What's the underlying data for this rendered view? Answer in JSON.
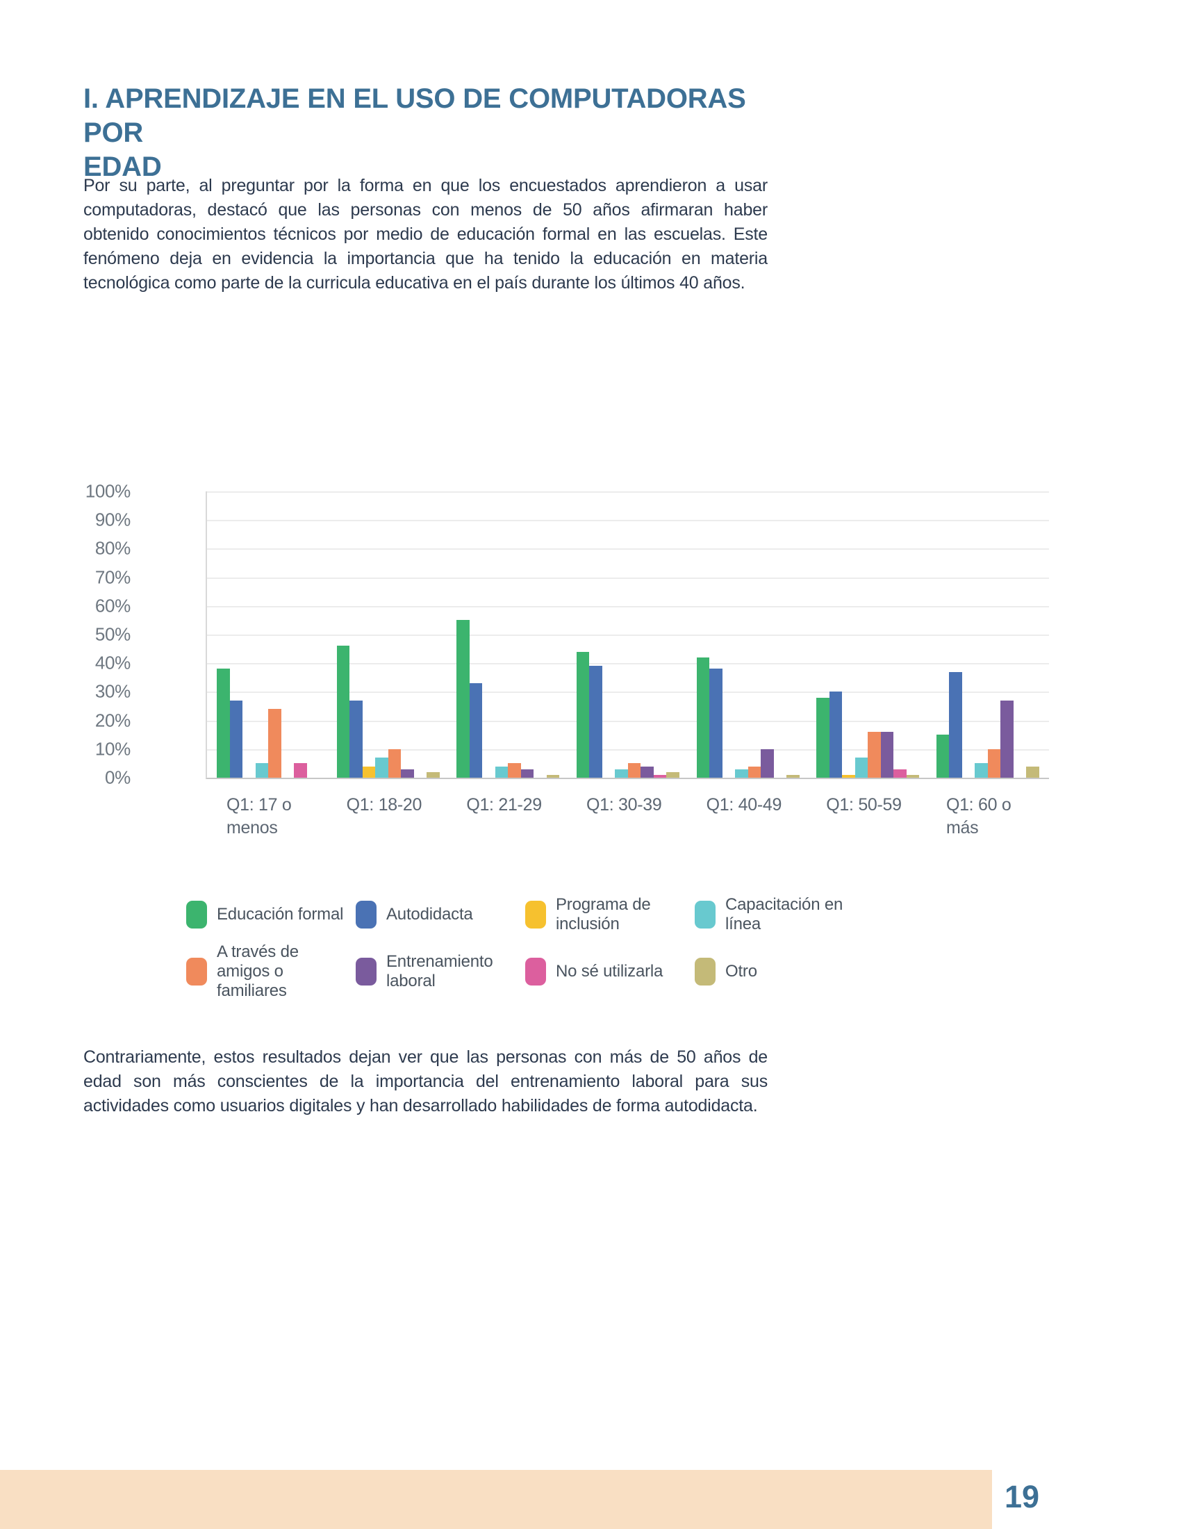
{
  "page": {
    "title": "I. APRENDIZAJE EN EL USO DE COMPUTADORAS POR\nEDAD",
    "paragraph_1": "Por su parte, al preguntar por la forma en que los encuestados aprendieron a usar computadoras, destacó que las personas con menos de 50 años afirmaran haber obtenido conocimientos técnicos por medio de educación formal en las escuelas. Este fenómeno deja en evidencia la importancia que ha tenido la educación en materia tecnológica como parte de la curricula educativa en el país durante los últimos 40 años.",
    "paragraph_2": "Contrariamente, estos resultados dejan ver que las personas con más de 50 años de edad son más conscientes de la importancia del entrenamiento laboral para sus actividades como usuarios digitales y han desarrollado habilidades de forma autodidacta.",
    "page_number": "19"
  },
  "colors": {
    "title_blue": "#3d7095",
    "body_text": "#2d3a4e",
    "axis_label_gray": "#6e7780",
    "gridline_gray": "#ececec",
    "footer_peach": "#f9dfc3"
  },
  "chart_data": {
    "type": "bar",
    "title": "",
    "xlabel": "",
    "ylabel": "",
    "ylim": [
      0,
      100
    ],
    "grid": true,
    "legend_position": "bottom",
    "y_ticks": [
      "100%",
      "90%",
      "80%",
      "70%",
      "60%",
      "50%",
      "40%",
      "30%",
      "20%",
      "10%",
      "0%"
    ],
    "categories": [
      "Q1: 17 o menos",
      "Q1: 18-20",
      "Q1: 21-29",
      "Q1: 30-39",
      "Q1: 40-49",
      "Q1: 50-59",
      "Q1: 60 o más"
    ],
    "category_labels": [
      "Q1: 17 o\nmenos",
      "Q1: 18-20",
      "Q1: 21-29",
      "Q1: 30-39",
      "Q1: 40-49",
      "Q1: 50-59",
      "Q1: 60 o\nmás"
    ],
    "series": [
      {
        "name": "Educación formal",
        "color": "#3cb46e",
        "values": [
          38,
          46,
          55,
          44,
          42,
          28,
          15
        ]
      },
      {
        "name": "Autodidacta",
        "color": "#4a72b4",
        "values": [
          27,
          27,
          33,
          39,
          38,
          30,
          37
        ]
      },
      {
        "name": "Programa de inclusión",
        "color": "#f6c12f",
        "values": [
          0,
          4,
          0,
          0,
          0,
          1,
          0
        ]
      },
      {
        "name": "Capacitación en línea",
        "color": "#68c9cf",
        "values": [
          5,
          7,
          4,
          3,
          3,
          7,
          5
        ]
      },
      {
        "name": "A través de amigos o familiares",
        "color": "#f08a5c",
        "values": [
          24,
          10,
          5,
          5,
          4,
          16,
          10
        ]
      },
      {
        "name": "Entrenamiento laboral",
        "color": "#7a5b9d",
        "values": [
          0,
          3,
          3,
          4,
          10,
          16,
          27
        ]
      },
      {
        "name": "No sé utilizarla",
        "color": "#dc5f9e",
        "values": [
          5,
          0,
          0,
          1,
          0,
          3,
          0
        ]
      },
      {
        "name": "Otro",
        "color": "#c4ba78",
        "values": [
          0,
          2,
          1,
          2,
          1,
          1,
          4
        ]
      }
    ],
    "legend": [
      {
        "label": "Educación formal",
        "color": "#3cb46e"
      },
      {
        "label": "Autodidacta",
        "color": "#4a72b4"
      },
      {
        "label": "Programa de\ninclusión",
        "color": "#f6c12f"
      },
      {
        "label": "Capacitación en\nlínea",
        "color": "#68c9cf"
      },
      {
        "label": "A través de\namigos o\nfamiliares",
        "color": "#f08a5c"
      },
      {
        "label": "Entrenamiento\nlaboral",
        "color": "#7a5b9d"
      },
      {
        "label": "No sé utilizarla",
        "color": "#dc5f9e"
      },
      {
        "label": "Otro",
        "color": "#c4ba78"
      }
    ]
  }
}
